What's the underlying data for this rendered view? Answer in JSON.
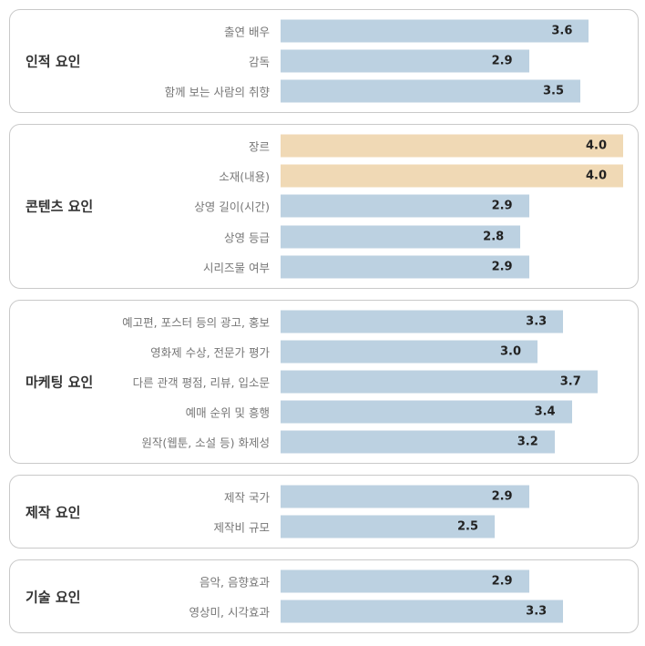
{
  "colors": {
    "default_bar": "#bcd1e1",
    "highlight_bar": "#f0d9b5"
  },
  "chart_data": {
    "type": "bar",
    "orientation": "horizontal",
    "title": "",
    "xlim": [
      0,
      4.0
    ],
    "groups": [
      {
        "name": "인적 요인",
        "items": [
          {
            "label": "출연 배우",
            "value": 3.6,
            "display": "3.6"
          },
          {
            "label": "감독",
            "value": 2.9,
            "display": "2.9"
          },
          {
            "label": "함께 보는 사람의 취향",
            "value": 3.5,
            "display": "3.5"
          }
        ]
      },
      {
        "name": "콘텐츠 요인",
        "items": [
          {
            "label": "장르",
            "value": 4.0,
            "display": "4.0",
            "highlight": true
          },
          {
            "label": "소재(내용)",
            "value": 4.0,
            "display": "4.0",
            "highlight": true
          },
          {
            "label": "상영 길이(시간)",
            "value": 2.9,
            "display": "2.9"
          },
          {
            "label": "상영 등급",
            "value": 2.8,
            "display": "2.8"
          },
          {
            "label": "시리즈물 여부",
            "value": 2.9,
            "display": "2.9"
          }
        ]
      },
      {
        "name": "마케팅 요인",
        "items": [
          {
            "label": "예고편, 포스터 등의 광고, 홍보",
            "value": 3.3,
            "display": "3.3"
          },
          {
            "label": "영화제 수상, 전문가 평가",
            "value": 3.0,
            "display": "3.0"
          },
          {
            "label": "다른 관객 평점, 리뷰, 입소문",
            "value": 3.7,
            "display": "3.7"
          },
          {
            "label": "예매 순위 및 흥행",
            "value": 3.4,
            "display": "3.4"
          },
          {
            "label": "원작(웹툰, 소설 등) 화제성",
            "value": 3.2,
            "display": "3.2"
          }
        ]
      },
      {
        "name": "제작 요인",
        "items": [
          {
            "label": "제작 국가",
            "value": 2.9,
            "display": "2.9"
          },
          {
            "label": "제작비 규모",
            "value": 2.5,
            "display": "2.5"
          }
        ]
      },
      {
        "name": "기술 요인",
        "items": [
          {
            "label": "음악, 음향효과",
            "value": 2.9,
            "display": "2.9"
          },
          {
            "label": "영상미, 시각효과",
            "value": 3.3,
            "display": "3.3"
          }
        ]
      }
    ]
  }
}
